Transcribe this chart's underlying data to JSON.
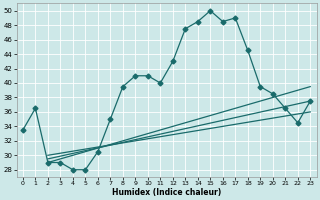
{
  "xlabel": "Humidex (Indice chaleur)",
  "background_color": "#cde8e8",
  "line_color": "#1a6b6b",
  "grid_color": "#b8d8d8",
  "ylim": [
    27,
    51
  ],
  "xlim": [
    -0.5,
    23.5
  ],
  "yticks": [
    28,
    30,
    32,
    34,
    36,
    38,
    40,
    42,
    44,
    46,
    48,
    50
  ],
  "xticks": [
    0,
    1,
    2,
    3,
    4,
    5,
    6,
    7,
    8,
    9,
    10,
    11,
    12,
    13,
    14,
    15,
    16,
    17,
    18,
    19,
    20,
    21,
    22,
    23
  ],
  "main_series": [
    33.5,
    36.5,
    29.0,
    29.0,
    28.0,
    28.0,
    30.5,
    35.0,
    39.5,
    41.0,
    41.0,
    40.0,
    43.0,
    47.5,
    48.5,
    50.0,
    48.5,
    49.0,
    44.5,
    39.5,
    38.5,
    36.5,
    34.5,
    37.5
  ],
  "trend_lines": [
    {
      "x0": 2,
      "y0": 29.0,
      "x1": 23,
      "y1": 39.5
    },
    {
      "x0": 2,
      "y0": 29.5,
      "x1": 23,
      "y1": 37.5
    },
    {
      "x0": 2,
      "y0": 30.0,
      "x1": 23,
      "y1": 36.0
    }
  ],
  "marker": "D",
  "marker_size": 2.5,
  "linewidth": 0.9
}
